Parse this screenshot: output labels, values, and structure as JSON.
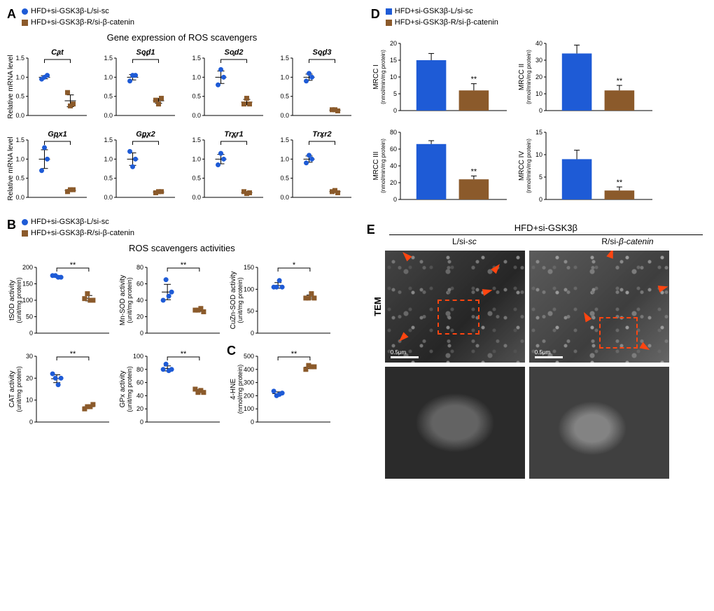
{
  "colors": {
    "blue": "#1e5bd6",
    "brown": "#8b5a2b",
    "red_orange": "#ff4510",
    "axis": "#000000",
    "bg": "#ffffff",
    "tem_bg": "#333333"
  },
  "legend": {
    "group1": "HFD+si-GSK3β-L/si-sc",
    "group2": "HFD+si-GSK3β-R/si-β-catenin"
  },
  "panel_labels": {
    "A": "A",
    "B": "B",
    "C": "C",
    "D": "D",
    "E": "E"
  },
  "A": {
    "title": "Gene expression of  ROS scavengers",
    "ylabel": "Relative mRNA level",
    "ylim": [
      0,
      1.5
    ],
    "ytick_step": 0.5,
    "chart_type": "scatter",
    "charts": [
      {
        "name": "Cat",
        "sig": "*",
        "blue": [
          0.95,
          1.0,
          1.05
        ],
        "brown": [
          0.6,
          0.25,
          0.3
        ]
      },
      {
        "name": "Sod1",
        "sig": "**",
        "blue": [
          0.9,
          1.05,
          1.05
        ],
        "brown": [
          0.4,
          0.3,
          0.45
        ]
      },
      {
        "name": "Sod2",
        "sig": "*",
        "blue": [
          0.8,
          1.2,
          1.0
        ],
        "brown": [
          0.3,
          0.45,
          0.3
        ]
      },
      {
        "name": "Sod3",
        "sig": "**",
        "blue": [
          0.9,
          1.1,
          1.0
        ],
        "brown": [
          0.15,
          0.15,
          0.12
        ]
      },
      {
        "name": "Gpx1",
        "sig": "*",
        "blue": [
          0.7,
          1.3,
          1.0
        ],
        "brown": [
          0.15,
          0.2,
          0.2
        ]
      },
      {
        "name": "Gpx2",
        "sig": "**",
        "blue": [
          1.2,
          0.8,
          1.0
        ],
        "brown": [
          0.12,
          0.15,
          0.15
        ]
      },
      {
        "name": "Trxr1",
        "sig": "**",
        "blue": [
          0.85,
          1.15,
          1.0
        ],
        "brown": [
          0.15,
          0.1,
          0.12
        ]
      },
      {
        "name": "Trxr2",
        "sig": "*",
        "blue": [
          0.9,
          1.1,
          1.0
        ],
        "brown": [
          0.15,
          0.18,
          0.12
        ]
      }
    ]
  },
  "B": {
    "title": "ROS scavengers activities",
    "chart_type": "scatter",
    "charts": [
      {
        "name": "tSOD activity",
        "unit": "(unit/mg protein)",
        "ylim": [
          0,
          200
        ],
        "step": 50,
        "sig": "**",
        "blue": [
          175,
          175,
          170,
          170
        ],
        "brown": [
          105,
          120,
          100,
          100
        ]
      },
      {
        "name": "Mn-SOD activity",
        "unit": "(unit/mg protein)",
        "ylim": [
          0,
          80
        ],
        "step": 20,
        "sig": "**",
        "blue": [
          40,
          65,
          45,
          50
        ],
        "brown": [
          28,
          28,
          30,
          26
        ]
      },
      {
        "name": "CuZn-SOD activity",
        "unit": "(unit/mg protein)",
        "ylim": [
          0,
          150
        ],
        "step": 50,
        "sig": "*",
        "blue": [
          105,
          105,
          120,
          105
        ],
        "brown": [
          80,
          80,
          90,
          80
        ]
      },
      {
        "name": "CAT activity",
        "unit": "(unit/mg protein)",
        "ylim": [
          0,
          30
        ],
        "step": 10,
        "sig": "**",
        "blue": [
          22,
          20,
          17,
          20
        ],
        "brown": [
          6,
          7,
          7,
          8
        ]
      },
      {
        "name": "GPx activity",
        "unit": "(unit/mg protein)",
        "ylim": [
          0,
          100
        ],
        "step": 20,
        "sig": "**",
        "blue": [
          80,
          88,
          78,
          80
        ],
        "brown": [
          50,
          45,
          48,
          45
        ]
      }
    ]
  },
  "C": {
    "chart_type": "scatter",
    "name": "4-HNE",
    "unit": "(nmol/mg protein)",
    "ylim": [
      0,
      500
    ],
    "step": 100,
    "sig": "**",
    "blue": [
      235,
      200,
      210,
      220
    ],
    "brown": [
      400,
      430,
      420,
      420
    ]
  },
  "D": {
    "chart_type": "bar",
    "charts": [
      {
        "name": "MRCC I",
        "unit": "(nmol/min/mg protein)",
        "ylim": [
          0,
          20
        ],
        "step": 5,
        "sig": "**",
        "blue": 15,
        "blue_err": 2,
        "brown": 6,
        "brown_err": 2
      },
      {
        "name": "MRCC II",
        "unit": "(nmol/min/mg protein)",
        "ylim": [
          0,
          40
        ],
        "step": 10,
        "sig": "**",
        "blue": 34,
        "blue_err": 5,
        "brown": 12,
        "brown_err": 3
      },
      {
        "name": "MRCC III",
        "unit": "(nmol/min/mg protein)",
        "ylim": [
          0,
          80
        ],
        "step": 20,
        "sig": "**",
        "blue": 66,
        "blue_err": 4,
        "brown": 24,
        "brown_err": 4
      },
      {
        "name": "MRCC IV",
        "unit": "(nmol/min/mg protein)",
        "ylim": [
          0,
          15
        ],
        "step": 5,
        "sig": "**",
        "blue": 9,
        "blue_err": 2,
        "brown": 2,
        "brown_err": 0.8
      }
    ]
  },
  "E": {
    "header": "HFD+si-GSK3β",
    "col1": "L/si-sc",
    "col2": "R/si-β-catenin",
    "side_label": "TEM",
    "scale_label": "0.5μm"
  }
}
